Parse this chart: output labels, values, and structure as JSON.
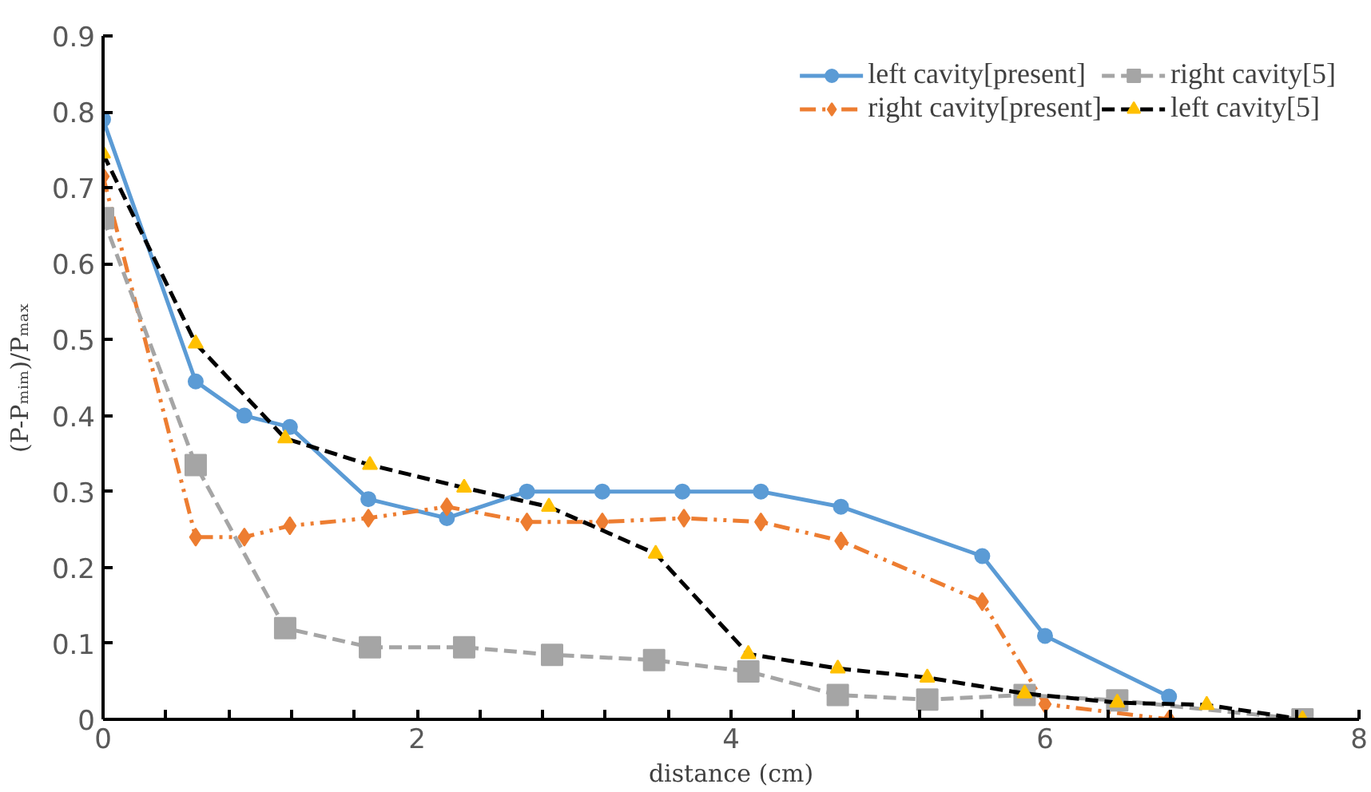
{
  "chart_data": {
    "type": "line",
    "xlabel": "distance (cm)",
    "ylabel": "(P-Pₘᵢₘ)/Pₘₐₓ",
    "xlim": [
      0,
      8
    ],
    "ylim": [
      0,
      0.9
    ],
    "xticks": [
      0,
      {
        "value": 0.4,
        "label": null
      },
      {
        "value": 0.8,
        "label": null
      },
      {
        "value": 1.2,
        "label": null
      },
      {
        "value": 1.6,
        "label": null
      },
      2,
      {
        "value": 2.4,
        "label": null
      },
      {
        "value": 2.8,
        "label": null
      },
      {
        "value": 3.2,
        "label": null
      },
      {
        "value": 3.6,
        "label": null
      },
      4,
      {
        "value": 4.4,
        "label": null
      },
      {
        "value": 4.8,
        "label": null
      },
      {
        "value": 5.2,
        "label": null
      },
      {
        "value": 5.6,
        "label": null
      },
      6,
      {
        "value": 6.4,
        "label": null
      },
      {
        "value": 6.8,
        "label": null
      },
      {
        "value": 7.2,
        "label": null
      },
      {
        "value": 7.6,
        "label": null
      },
      8
    ],
    "yticks": [
      0,
      0.1,
      0.2,
      0.3,
      0.4,
      0.5,
      0.6,
      0.7,
      0.8,
      0.9
    ],
    "grid": false,
    "legend": "top right",
    "series": [
      {
        "name": "left cavity[present]",
        "color": "#5b9bd5",
        "marker": "circle",
        "line_style": "solid",
        "x": [
          0,
          0.59,
          0.9,
          1.19,
          1.69,
          2.19,
          2.7,
          3.18,
          3.69,
          4.19,
          4.7,
          5.6,
          6.0,
          6.79
        ],
        "values": [
          0.79,
          0.445,
          0.4,
          0.385,
          0.29,
          0.265,
          0.3,
          0.3,
          0.3,
          0.3,
          0.28,
          0.215,
          0.11,
          0.03
        ]
      },
      {
        "name": "right cavity[present]",
        "color": "#ed7d31",
        "marker": "diamond",
        "line_style": "dashdot",
        "x": [
          0,
          0.59,
          0.9,
          1.19,
          1.69,
          2.19,
          2.7,
          3.18,
          3.7,
          4.19,
          4.7,
          5.6,
          6.0,
          6.79
        ],
        "values": [
          0.715,
          0.24,
          0.24,
          0.255,
          0.265,
          0.28,
          0.26,
          0.26,
          0.265,
          0.26,
          0.235,
          0.155,
          0.02,
          0
        ]
      },
      {
        "name": "right cavity[5]",
        "color": "#a5a5a5",
        "marker": "square",
        "line_style": "dashed",
        "x": [
          0,
          0.59,
          1.16,
          1.7,
          2.3,
          2.86,
          3.51,
          4.11,
          4.68,
          5.25,
          5.87,
          6.46,
          7.64
        ],
        "values": [
          0.66,
          0.335,
          0.12,
          0.095,
          0.095,
          0.085,
          0.078,
          0.063,
          0.032,
          0.026,
          0.032,
          0.025,
          0
        ]
      },
      {
        "name": "left cavity[5]",
        "color": "#000000",
        "colors": [
          "#ffc000",
          "#ffc000",
          "#ffc000",
          "#ffc000",
          "#ffc000",
          "#ffc000",
          "#ffc000",
          "#ffc000",
          "#ffc000",
          "#ffc000",
          "#ffc000",
          "#ffc000",
          "#ffc000",
          "#ffc000"
        ],
        "marker": "triangle",
        "line_style": "dashed",
        "x": [
          0,
          0.59,
          1.16,
          1.7,
          2.3,
          2.84,
          3.52,
          4.11,
          4.68,
          5.25,
          5.87,
          6.46,
          7.03,
          7.64
        ],
        "values": [
          0.745,
          0.495,
          0.37,
          0.335,
          0.305,
          0.28,
          0.218,
          0.086,
          0.067,
          0.055,
          0.034,
          0.022,
          0.019,
          0
        ]
      }
    ]
  }
}
